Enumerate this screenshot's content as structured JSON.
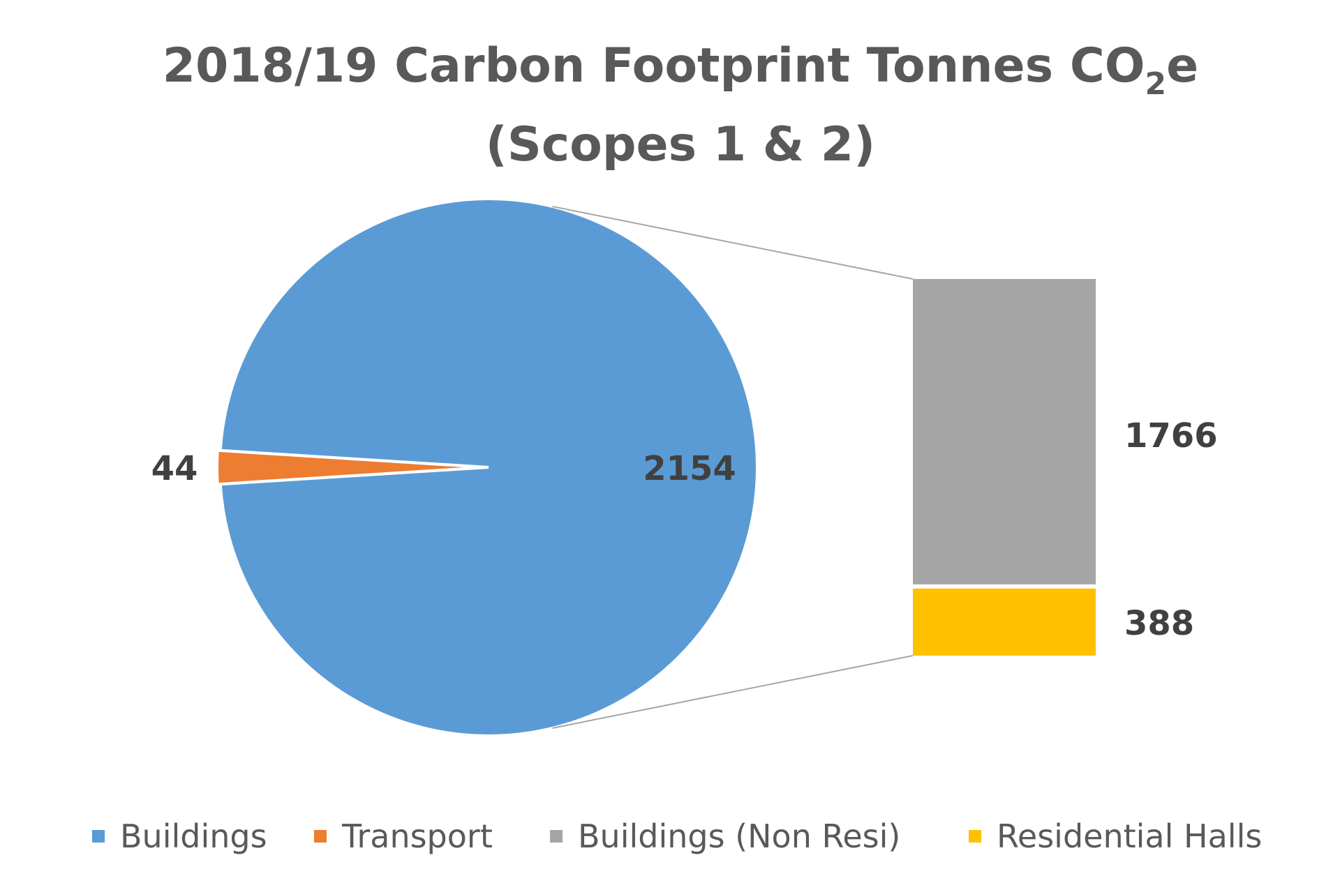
{
  "chart_data": {
    "type": "bar-of-pie",
    "title": "2018/19 Carbon Footprint Tonnes CO",
    "title_subscript": "2",
    "title_suffix": "e",
    "subtitle": "(Scopes 1 & 2)",
    "pie": {
      "slices": [
        {
          "name": "Buildings",
          "value": 2154,
          "color": "#5B9BD5"
        },
        {
          "name": "Transport",
          "value": 44,
          "color": "#ED7D31"
        }
      ]
    },
    "bar": {
      "breakdown_of": "Buildings",
      "segments": [
        {
          "name": "Buildings (Non Resi)",
          "value": 1766,
          "color": "#A5A5A5"
        },
        {
          "name": "Residential Halls",
          "value": 388,
          "color": "#FFC000"
        }
      ]
    },
    "legend": {
      "position": "bottom",
      "entries": [
        {
          "label": "Buildings",
          "color": "#5B9BD5"
        },
        {
          "label": "Transport",
          "color": "#ED7D31"
        },
        {
          "label": "Buildings (Non Resi)",
          "color": "#A5A5A5"
        },
        {
          "label": "Residential Halls",
          "color": "#FFC000"
        }
      ]
    },
    "data_labels": {
      "buildings": "2154",
      "transport": "44",
      "non_resi": "1766",
      "residential": "388"
    }
  }
}
